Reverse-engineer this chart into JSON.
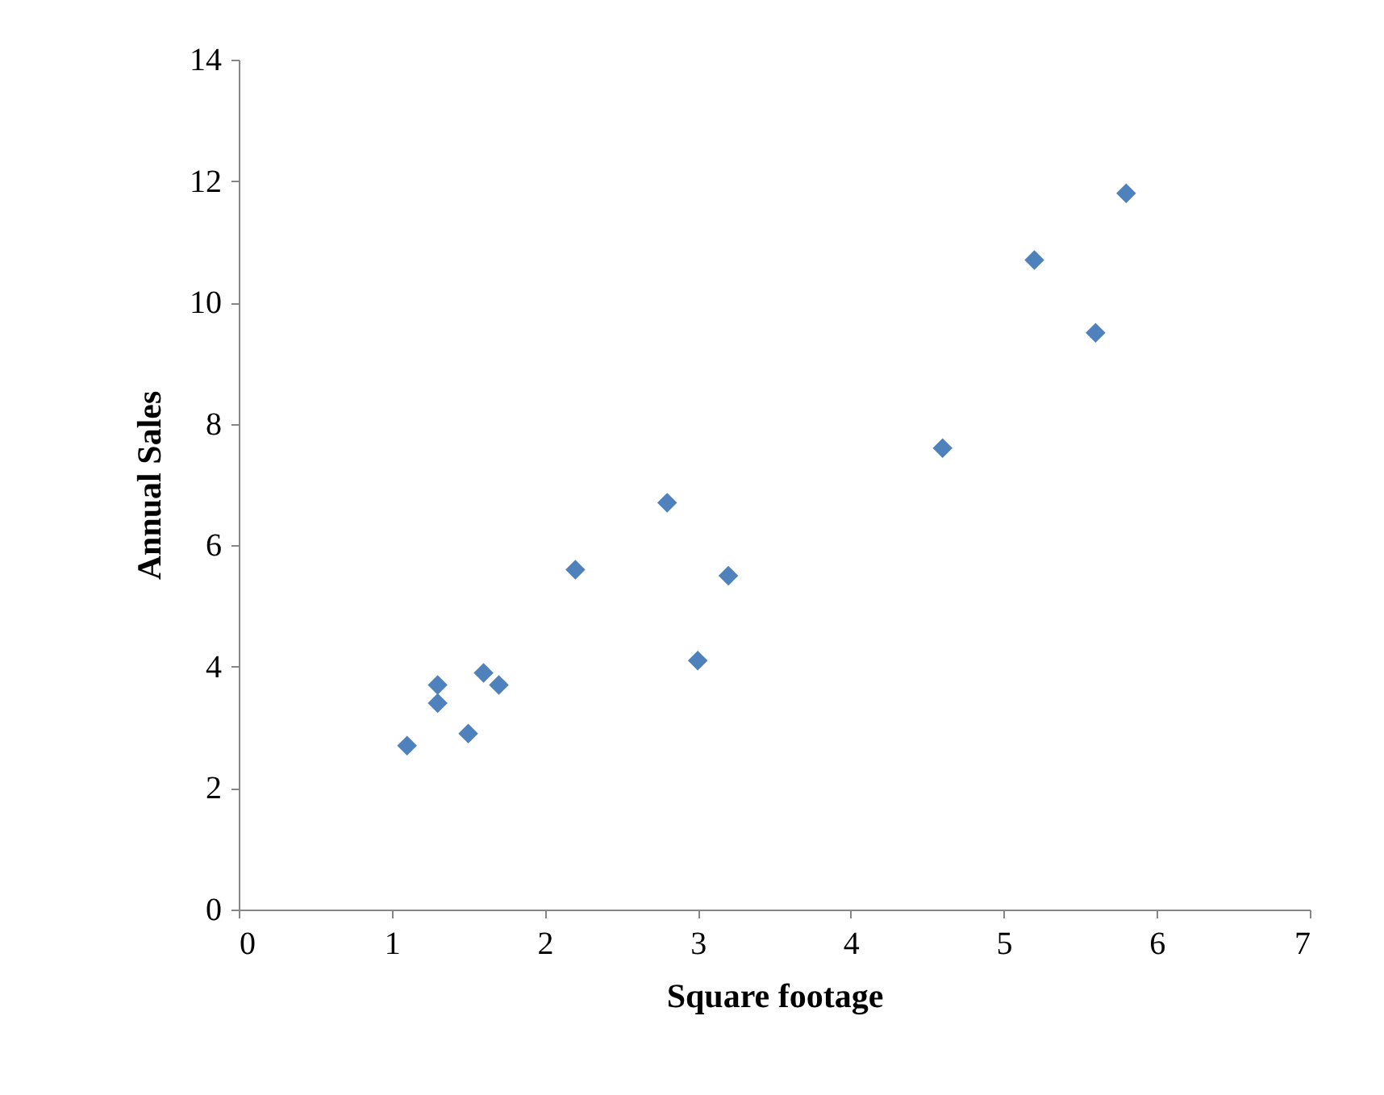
{
  "chart_data": {
    "type": "scatter",
    "xlabel": "Square footage",
    "ylabel": "Annual Sales",
    "x": [
      1.1,
      1.3,
      1.3,
      1.5,
      1.6,
      1.7,
      2.2,
      2.8,
      3.0,
      3.2,
      4.6,
      5.2,
      5.6,
      5.8
    ],
    "series": [
      {
        "color": "#4f81bd",
        "values": [
          2.7,
          3.7,
          3.4,
          2.9,
          3.9,
          3.7,
          5.6,
          6.7,
          4.1,
          5.5,
          7.6,
          10.7,
          9.5,
          11.8
        ]
      }
    ],
    "xlim": [
      0,
      7
    ],
    "xticks": [
      0,
      1,
      2,
      3,
      4,
      5,
      6,
      7
    ],
    "ylim": [
      0,
      14
    ],
    "yticks": [
      0,
      2,
      4,
      6,
      8,
      10,
      12,
      14
    ],
    "marker": "diamond",
    "grid": false
  }
}
